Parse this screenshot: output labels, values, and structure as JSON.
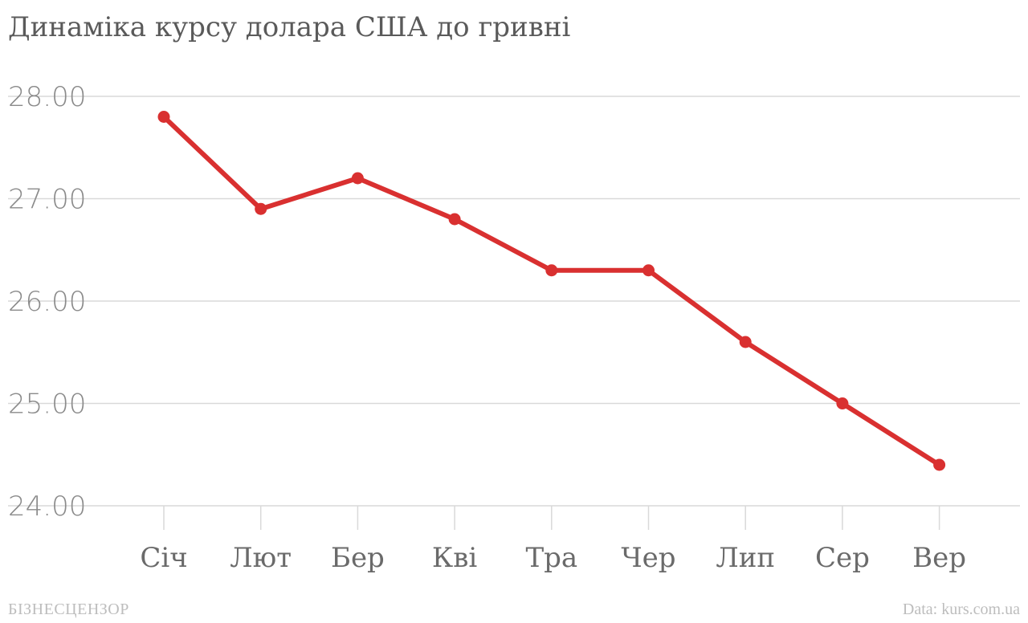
{
  "chart_data": {
    "type": "line",
    "title": "Динаміка курсу долара США до гривні",
    "categories": [
      "Січ",
      "Лют",
      "Бер",
      "Кві",
      "Тра",
      "Чер",
      "Лип",
      "Сер",
      "Вер"
    ],
    "series": [
      {
        "values": [
          27.8,
          26.9,
          27.2,
          26.8,
          26.3,
          26.3,
          25.6,
          25.0,
          24.4
        ]
      }
    ],
    "ylim": [
      24,
      28
    ],
    "yticks": [
      "28.00",
      "27.00",
      "26.00",
      "25.00",
      "24.00"
    ],
    "grid": true,
    "line_color": "#d93030",
    "grid_color": "#d9d9d9"
  },
  "footer": {
    "brand": "БІЗНЕСЦЕНЗОР",
    "source": "Data: kurs.com.ua"
  }
}
